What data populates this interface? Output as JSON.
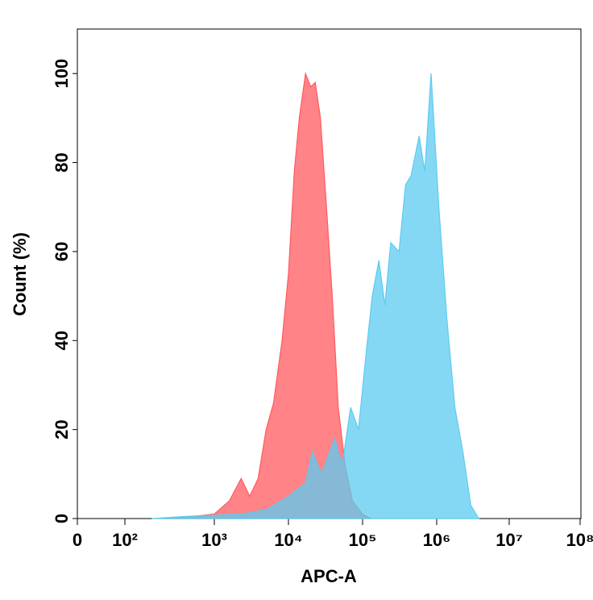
{
  "chart_data": {
    "type": "histogram-overlay",
    "x_label": "APC-A",
    "y_label": "Count (%)",
    "xscale": "biexponential",
    "xlim": [
      0,
      100000000
    ],
    "xticks": [
      0,
      {
        "value": 100,
        "label": "10²"
      },
      {
        "value": 1000,
        "label": "10³"
      },
      {
        "value": 10000,
        "label": "10⁴"
      },
      {
        "value": 100000,
        "label": "10⁵"
      },
      {
        "value": 1000000,
        "label": "10⁶"
      },
      {
        "value": 10000000,
        "label": "10⁷"
      },
      {
        "value": 100000000,
        "label": "10⁸"
      }
    ],
    "ylim": [
      0,
      110
    ],
    "yticks": [
      0,
      20,
      40,
      60,
      80,
      100
    ],
    "series": [
      {
        "color": "#ff5a5f",
        "x": [
          260,
          590,
          1000,
          1600,
          2300,
          3000,
          3900,
          5000,
          6300,
          8200,
          10000,
          12000,
          14000,
          17000,
          20000,
          23000,
          27000,
          32000,
          39000,
          47000,
          58000,
          73000,
          100000,
          130000
        ],
        "values": [
          0,
          0.5,
          1,
          4,
          9,
          5,
          9,
          20,
          26,
          40,
          55,
          78,
          90,
          100,
          97,
          98,
          90,
          72,
          50,
          25,
          12,
          4,
          1,
          0
        ]
      },
      {
        "color": "#5ccbf0",
        "x": [
          200,
          500,
          2300,
          5000,
          10000,
          17000,
          21000,
          28000,
          42000,
          53000,
          69000,
          88000,
          113000,
          135000,
          166000,
          200000,
          240000,
          310000,
          380000,
          450000,
          580000,
          690000,
          840000,
          1070000,
          1380000,
          1780000,
          2300000,
          2950000,
          3800000
        ],
        "values": [
          0,
          0.5,
          1,
          2,
          5,
          8,
          15,
          10,
          18,
          12,
          25,
          20,
          38,
          50,
          58,
          48,
          62,
          60,
          75,
          77,
          86,
          78,
          100,
          70,
          45,
          25,
          15,
          3,
          0
        ]
      }
    ]
  }
}
